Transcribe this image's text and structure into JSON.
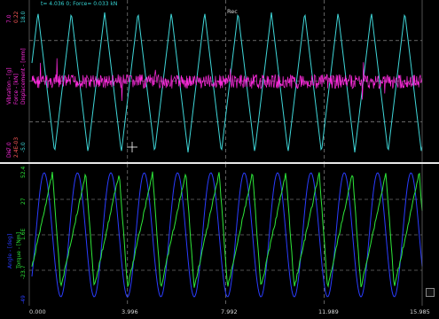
{
  "readout": {
    "text": "t= 4.036 0; Force= 0.033 kN",
    "color": "#36d4d4"
  },
  "rec_label": "Rec",
  "top_panel": {
    "labels": {
      "left_a": "Vibration - [g]",
      "left_b": "Force - [kN]",
      "left_c": "Displacement - [mm]",
      "left_d": "Dis"
    },
    "ticks": {
      "top_a": "7.0",
      "top_b": "0.22",
      "top_c": "18.0",
      "bottom_a": "-7.0",
      "bottom_b": "2.4E-03",
      "bottom_c": "-5.0"
    },
    "colors": {
      "force": "#ff2bdf",
      "displacement": "#3fd6d8",
      "vibration": "#ff5a5a",
      "grid": "#a0a0a0"
    }
  },
  "bottom_panel": {
    "labels": {
      "left_a": "Angle - [deg]",
      "left_b": "Torque - [Nm]"
    },
    "ticks": {
      "top_a": "52.4",
      "mid_a": "27",
      "mid_b": "1.6E",
      "low_a": "-23.7",
      "bottom_a": "-49"
    },
    "colors": {
      "angle": "#2a3cff",
      "torque": "#2ee83a",
      "grid": "#a0a0a0"
    }
  },
  "x_axis": {
    "ticks": [
      "0.000",
      "3.996",
      "7.992",
      "11.989",
      "15.985"
    ]
  },
  "icons": {
    "cursor": "crosshair-icon",
    "side_button": "settings-icon"
  }
}
